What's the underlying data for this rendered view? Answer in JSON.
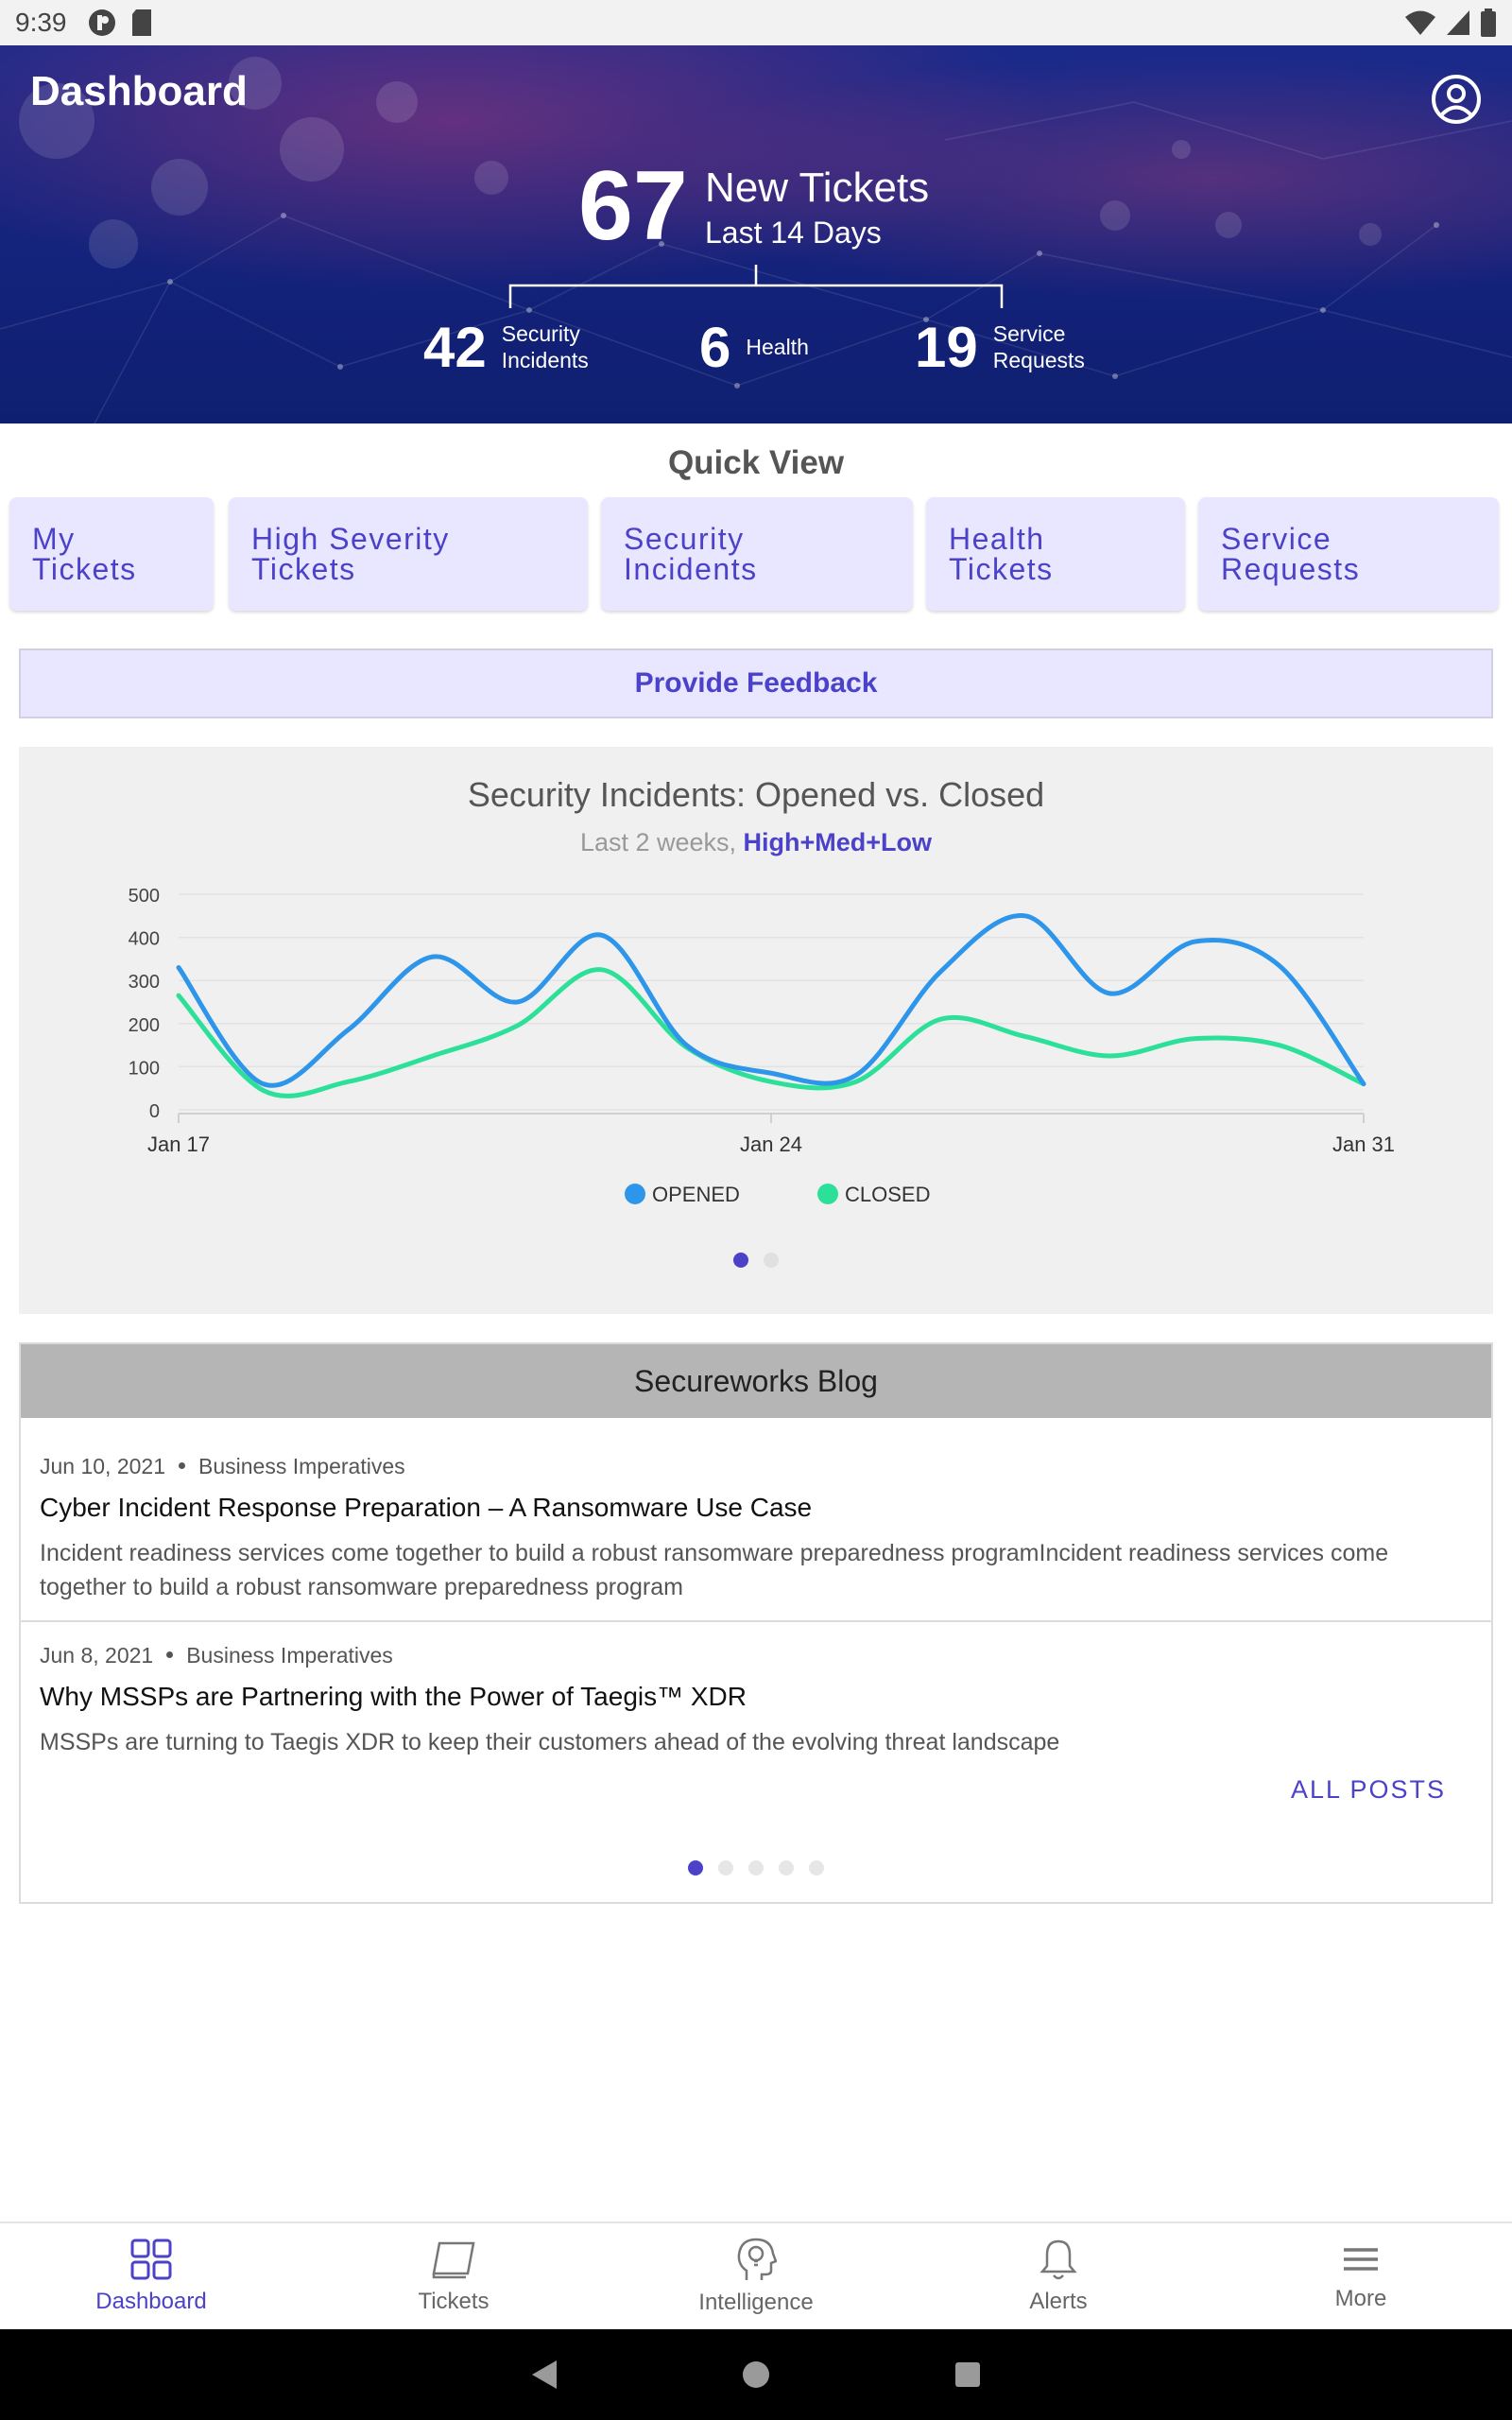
{
  "status_bar": {
    "time": "9:39"
  },
  "header": {
    "title": "Dashboard",
    "total_tickets": "67",
    "new_tickets_label": "New Tickets",
    "range_label": "Last 14 Days",
    "stats": [
      {
        "value": "42",
        "label_line1": "Security",
        "label_line2": "Incidents"
      },
      {
        "value": "6",
        "label_line1": "Health",
        "label_line2": ""
      },
      {
        "value": "19",
        "label_line1": "Service",
        "label_line2": "Requests"
      }
    ]
  },
  "quick_view": {
    "title": "Quick View",
    "buttons": [
      {
        "line1": "My",
        "line2": "Tickets"
      },
      {
        "line1": "High Severity",
        "line2": "Tickets"
      },
      {
        "line1": "Security",
        "line2": "Incidents"
      },
      {
        "line1": "Health",
        "line2": "Tickets"
      },
      {
        "line1": "Service",
        "line2": "Requests"
      }
    ]
  },
  "feedback_label": "Provide Feedback",
  "chart": {
    "title": "Security Incidents: Opened vs. Closed",
    "subtitle_prefix": "Last 2 weeks, ",
    "subtitle_accent": "High+Med+Low"
  },
  "chart_data": {
    "type": "line",
    "title": "Security Incidents: Opened vs. Closed",
    "subtitle": "Last 2 weeks, High+Med+Low",
    "x_tick_labels": [
      "Jan 17",
      "Jan 24",
      "Jan 31"
    ],
    "x": [
      "Jan 17",
      "Jan 18",
      "Jan 19",
      "Jan 20",
      "Jan 21",
      "Jan 22",
      "Jan 23",
      "Jan 24",
      "Jan 25",
      "Jan 26",
      "Jan 27",
      "Jan 28",
      "Jan 29",
      "Jan 30",
      "Jan 31"
    ],
    "ylim": [
      0,
      500
    ],
    "y_ticks": [
      0,
      100,
      200,
      300,
      400,
      500
    ],
    "series": [
      {
        "name": "OPENED",
        "color": "#2e96ea",
        "values": [
          330,
          60,
          185,
          355,
          250,
          405,
          150,
          85,
          80,
          320,
          450,
          270,
          390,
          335,
          60
        ]
      },
      {
        "name": "CLOSED",
        "color": "#2de09a",
        "values": [
          265,
          45,
          65,
          125,
          195,
          325,
          145,
          65,
          65,
          210,
          170,
          125,
          165,
          150,
          60
        ]
      }
    ],
    "legend_position": "bottom",
    "grid": true
  },
  "chart_pager": {
    "count": 2,
    "active": 0
  },
  "blog": {
    "title": "Secureworks Blog",
    "posts": [
      {
        "date": "Jun 10, 2021",
        "category": "Business Imperatives",
        "title": "Cyber Incident Response Preparation – A Ransomware Use Case",
        "description": "Incident readiness services come together to build a robust ransomware preparedness programIncident readiness services come together to build a robust ransomware preparedness program"
      },
      {
        "date": "Jun 8, 2021",
        "category": "Business Imperatives",
        "title": "Why MSSPs are Partnering with the Power of Taegis™ XDR",
        "description": "MSSPs are turning to Taegis XDR to keep their customers ahead of the evolving threat landscape"
      }
    ],
    "all_posts_label": "ALL POSTS",
    "pager": {
      "count": 5,
      "active": 0
    }
  },
  "bottom_nav": [
    {
      "label": "Dashboard",
      "icon": "grid-icon",
      "active": true
    },
    {
      "label": "Tickets",
      "icon": "ticket-icon",
      "active": false
    },
    {
      "label": "Intelligence",
      "icon": "lightbulb-head-icon",
      "active": false
    },
    {
      "label": "Alerts",
      "icon": "bell-icon",
      "active": false
    },
    {
      "label": "More",
      "icon": "menu-icon",
      "active": false
    }
  ],
  "colors": {
    "accent": "#4b42c9",
    "header_bg": "#13227a",
    "quick_view_bg": "#e8e7ff"
  }
}
